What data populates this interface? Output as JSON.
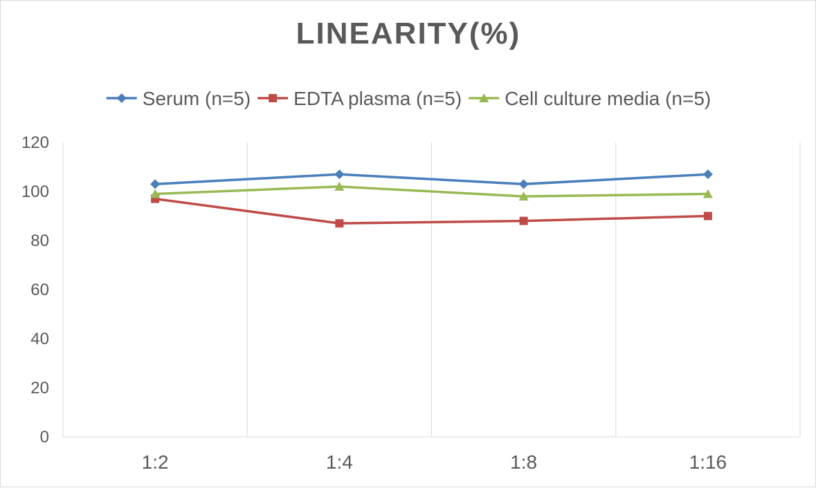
{
  "chart_data": {
    "type": "line",
    "title": "LINEARITY(%)",
    "categories": [
      "1:2",
      "1:4",
      "1:8",
      "1:16"
    ],
    "ylim": [
      0,
      120
    ],
    "yticks": [
      0,
      20,
      40,
      60,
      80,
      100,
      120
    ],
    "grid": "vertical",
    "legend_position": "top",
    "series": [
      {
        "name": "Serum (n=5)",
        "values": [
          103,
          107,
          103,
          107
        ],
        "color": "#4a7ebb",
        "marker": "diamond"
      },
      {
        "name": "EDTA plasma (n=5)",
        "values": [
          97,
          87,
          88,
          90
        ],
        "color": "#be4b48",
        "marker": "square"
      },
      {
        "name": "Cell culture media (n=5)",
        "values": [
          99,
          102,
          98,
          99
        ],
        "color": "#98b954",
        "marker": "triangle"
      }
    ]
  }
}
